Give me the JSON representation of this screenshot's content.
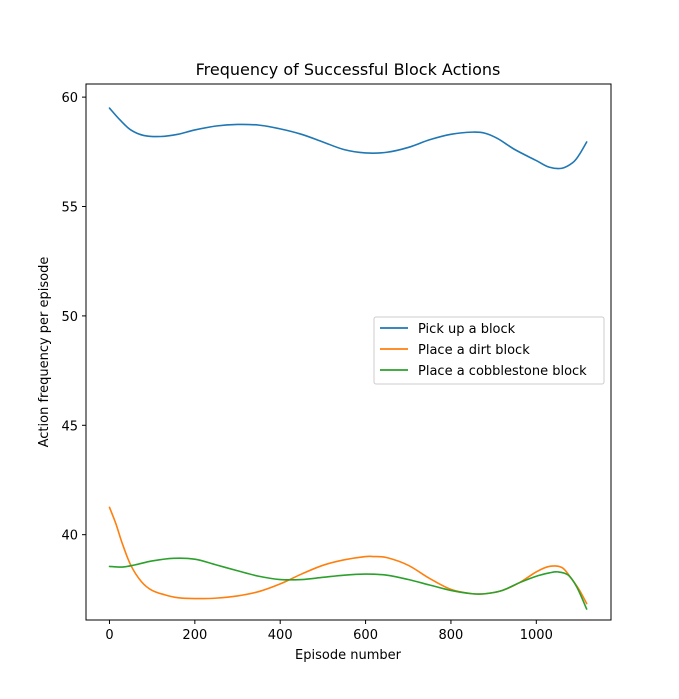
{
  "chart_data": {
    "type": "line",
    "title": "Frequency of Successful Block Actions",
    "xlabel": "Episode number",
    "ylabel": "Action frequency per episode",
    "xlim": [
      -55,
      1175
    ],
    "ylim": [
      36.1,
      60.6
    ],
    "xticks": [
      0,
      200,
      400,
      600,
      800,
      1000
    ],
    "yticks": [
      40,
      45,
      50,
      55,
      60
    ],
    "grid": false,
    "legend_position": "center-right",
    "series": [
      {
        "name": "Pick up a block",
        "color": "#1f77b4",
        "x": [
          0,
          25,
          50,
          80,
          120,
          160,
          200,
          250,
          300,
          350,
          400,
          450,
          500,
          550,
          600,
          650,
          700,
          750,
          800,
          850,
          880,
          910,
          950,
          1000,
          1030,
          1060,
          1085,
          1100,
          1118
        ],
        "y": [
          59.5,
          58.95,
          58.5,
          58.25,
          58.2,
          58.3,
          58.5,
          58.68,
          58.75,
          58.72,
          58.55,
          58.3,
          57.95,
          57.6,
          57.45,
          57.48,
          57.7,
          58.05,
          58.3,
          58.4,
          58.35,
          58.1,
          57.6,
          57.1,
          56.8,
          56.75,
          57.0,
          57.35,
          57.95
        ]
      },
      {
        "name": "Place a dirt block",
        "color": "#ff7f0e",
        "x": [
          0,
          15,
          30,
          50,
          75,
          100,
          130,
          160,
          200,
          250,
          300,
          350,
          400,
          450,
          500,
          550,
          600,
          620,
          650,
          700,
          750,
          800,
          850,
          880,
          920,
          960,
          1000,
          1030,
          1060,
          1080,
          1100,
          1118
        ],
        "y": [
          41.25,
          40.5,
          39.6,
          38.6,
          37.85,
          37.45,
          37.25,
          37.12,
          37.08,
          37.1,
          37.2,
          37.4,
          37.75,
          38.2,
          38.6,
          38.85,
          39.0,
          39.0,
          38.95,
          38.6,
          38.0,
          37.5,
          37.3,
          37.3,
          37.45,
          37.8,
          38.3,
          38.55,
          38.5,
          38.05,
          37.5,
          36.85
        ]
      },
      {
        "name": "Place a cobblestone block",
        "color": "#2ca02c",
        "x": [
          0,
          30,
          60,
          100,
          150,
          200,
          250,
          300,
          350,
          400,
          450,
          500,
          550,
          600,
          650,
          700,
          750,
          800,
          850,
          880,
          920,
          960,
          1000,
          1030,
          1050,
          1075,
          1095,
          1118
        ],
        "y": [
          38.55,
          38.52,
          38.62,
          38.8,
          38.92,
          38.88,
          38.62,
          38.35,
          38.1,
          37.95,
          37.95,
          38.05,
          38.15,
          38.2,
          38.15,
          37.95,
          37.7,
          37.45,
          37.3,
          37.3,
          37.45,
          37.8,
          38.1,
          38.25,
          38.3,
          38.15,
          37.6,
          36.6
        ]
      }
    ]
  }
}
